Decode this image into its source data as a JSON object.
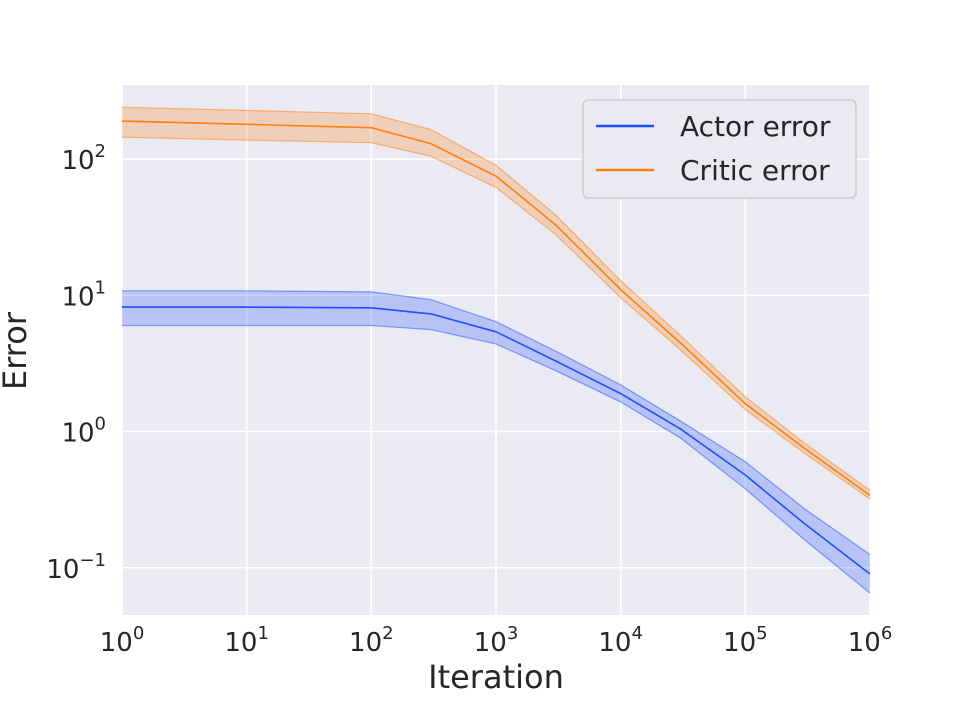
{
  "chart_data": {
    "type": "line",
    "title": "",
    "xlabel": "Iteration",
    "ylabel": "Error",
    "xscale": "log",
    "yscale": "log",
    "xlim": [
      1,
      1000000
    ],
    "ylim": [
      0.045,
      350
    ],
    "grid": true,
    "legend_position": "top-right",
    "background_color": "#eaeaf2",
    "x_ticks": [
      {
        "base": "10",
        "exp": "0"
      },
      {
        "base": "10",
        "exp": "1"
      },
      {
        "base": "10",
        "exp": "2"
      },
      {
        "base": "10",
        "exp": "3"
      },
      {
        "base": "10",
        "exp": "4"
      },
      {
        "base": "10",
        "exp": "5"
      },
      {
        "base": "10",
        "exp": "6"
      }
    ],
    "y_ticks": [
      {
        "base": "10",
        "exp": "−1"
      },
      {
        "base": "10",
        "exp": "0"
      },
      {
        "base": "10",
        "exp": "1"
      },
      {
        "base": "10",
        "exp": "2"
      }
    ],
    "x": [
      1,
      10,
      100,
      300,
      1000,
      3000,
      10000,
      30000,
      100000,
      300000,
      1000000
    ],
    "series": [
      {
        "name": "Actor error",
        "color": "#1f4fff",
        "values": [
          8.2,
          8.2,
          8.1,
          7.3,
          5.4,
          3.3,
          1.9,
          1.05,
          0.48,
          0.21,
          0.09
        ],
        "lower": [
          6.0,
          6.0,
          6.0,
          5.6,
          4.4,
          2.8,
          1.65,
          0.9,
          0.38,
          0.16,
          0.065
        ],
        "upper": [
          10.8,
          10.8,
          10.6,
          9.3,
          6.4,
          3.9,
          2.2,
          1.2,
          0.6,
          0.27,
          0.125
        ]
      },
      {
        "name": "Critic error",
        "color": "#ff7f0e",
        "values": [
          190,
          180,
          170,
          130,
          75,
          33,
          11,
          4.5,
          1.6,
          0.75,
          0.34
        ],
        "lower": [
          145,
          138,
          132,
          105,
          62,
          28,
          9.6,
          4.0,
          1.45,
          0.69,
          0.32
        ],
        "upper": [
          240,
          228,
          215,
          165,
          90,
          39,
          12.8,
          5.1,
          1.8,
          0.82,
          0.37
        ]
      }
    ]
  }
}
